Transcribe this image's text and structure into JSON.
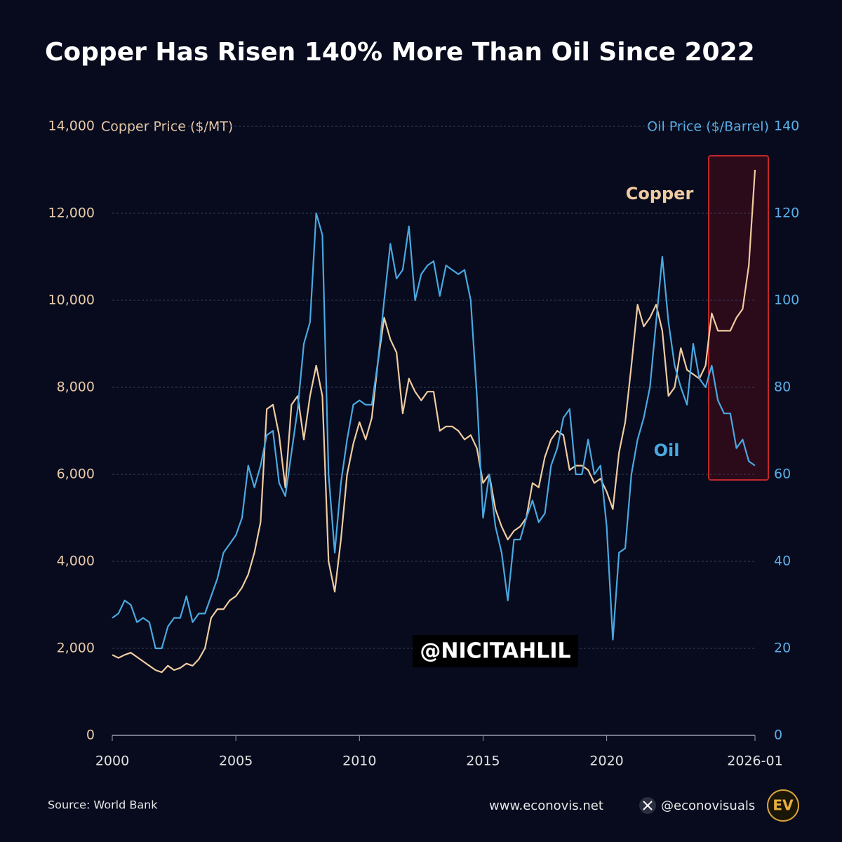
{
  "chart_data": {
    "type": "line",
    "title": "Copper Has Risen 140% More Than Oil Since 2022",
    "y_label": "Copper Price ($/MT)",
    "y2_label": "Oil Price ($/Barrel)",
    "source": "Source: World Bank",
    "website": "www.econovis.net",
    "handle": "@econovisuals",
    "logo": "EV",
    "watermark": "@NICITAHLIL",
    "x": [
      2000,
      2000.25,
      2000.5,
      2000.75,
      2001,
      2001.25,
      2001.5,
      2001.75,
      2002,
      2002.25,
      2002.5,
      2002.75,
      2003,
      2003.25,
      2003.5,
      2003.75,
      2004,
      2004.25,
      2004.5,
      2004.75,
      2005,
      2005.25,
      2005.5,
      2005.75,
      2006,
      2006.25,
      2006.5,
      2006.75,
      2007,
      2007.25,
      2007.5,
      2007.75,
      2008,
      2008.25,
      2008.5,
      2008.75,
      2009,
      2009.25,
      2009.5,
      2009.75,
      2010,
      2010.25,
      2010.5,
      2010.75,
      2011,
      2011.25,
      2011.5,
      2011.75,
      2012,
      2012.25,
      2012.5,
      2012.75,
      2013,
      2013.25,
      2013.5,
      2013.75,
      2014,
      2014.25,
      2014.5,
      2014.75,
      2015,
      2015.25,
      2015.5,
      2015.75,
      2016,
      2016.25,
      2016.5,
      2016.75,
      2017,
      2017.25,
      2017.5,
      2017.75,
      2018,
      2018.25,
      2018.5,
      2018.75,
      2019,
      2019.25,
      2019.5,
      2019.75,
      2020,
      2020.25,
      2020.5,
      2020.75,
      2021,
      2021.25,
      2021.5,
      2021.75,
      2022,
      2022.25,
      2022.5,
      2022.75,
      2023,
      2023.25,
      2023.5,
      2023.75,
      2024,
      2024.25,
      2024.5,
      2024.75,
      2025,
      2025.25,
      2025.5,
      2025.75,
      2026
    ],
    "series": [
      {
        "name": "Copper",
        "color": "#f0cba0",
        "axis": "y",
        "values": [
          1850,
          1780,
          1850,
          1900,
          1800,
          1700,
          1600,
          1500,
          1450,
          1600,
          1500,
          1550,
          1650,
          1600,
          1750,
          2000,
          2700,
          2900,
          2900,
          3100,
          3200,
          3400,
          3700,
          4200,
          4900,
          7500,
          7600,
          6900,
          5700,
          7600,
          7800,
          6800,
          7800,
          8500,
          7800,
          4000,
          3300,
          4500,
          6000,
          6700,
          7200,
          6800,
          7300,
          8600,
          9600,
          9100,
          8800,
          7400,
          8200,
          7900,
          7700,
          7900,
          7900,
          7000,
          7100,
          7100,
          7000,
          6800,
          6900,
          6600,
          5800,
          6000,
          5200,
          4800,
          4500,
          4700,
          4800,
          5000,
          5800,
          5700,
          6400,
          6800,
          7000,
          6900,
          6100,
          6200,
          6200,
          6100,
          5800,
          5900,
          5600,
          5200,
          6500,
          7200,
          8500,
          9900,
          9400,
          9600,
          9900,
          9300,
          7800,
          8000,
          8900,
          8400,
          8300,
          8200,
          8500,
          9700,
          9300,
          9300,
          9300,
          9600,
          9800,
          10800,
          13000
        ]
      },
      {
        "name": "Oil",
        "color": "#4aa8e0",
        "axis": "y2",
        "values": [
          27,
          28,
          31,
          30,
          26,
          27,
          26,
          20,
          20,
          25,
          27,
          27,
          32,
          26,
          28,
          28,
          32,
          36,
          42,
          44,
          46,
          50,
          62,
          57,
          62,
          69,
          70,
          58,
          55,
          65,
          75,
          90,
          95,
          120,
          115,
          60,
          42,
          58,
          68,
          76,
          77,
          76,
          76,
          86,
          100,
          113,
          105,
          107,
          117,
          100,
          106,
          108,
          109,
          101,
          108,
          107,
          106,
          107,
          100,
          78,
          50,
          60,
          48,
          42,
          31,
          45,
          45,
          50,
          54,
          49,
          51,
          62,
          66,
          73,
          75,
          60,
          60,
          68,
          60,
          62,
          48,
          22,
          42,
          43,
          60,
          68,
          73,
          80,
          95,
          110,
          95,
          85,
          80,
          76,
          90,
          82,
          80,
          85,
          77,
          74,
          74,
          66,
          68,
          63,
          62
        ]
      }
    ],
    "xlim": [
      2000,
      2026
    ],
    "xticks": [
      2000,
      2005,
      2010,
      2015,
      2020,
      {
        "value": 2026,
        "label": "2026-01"
      }
    ],
    "ylim": [
      0,
      14000
    ],
    "yticks": [
      0,
      {
        "value": 2000,
        "label": "2,000"
      },
      {
        "value": 4000,
        "label": "4,000"
      },
      {
        "value": 6000,
        "label": "6,000"
      },
      {
        "value": 8000,
        "label": "8,000"
      },
      {
        "value": 10000,
        "label": "10,000"
      },
      {
        "value": 12000,
        "label": "12,000"
      },
      {
        "value": 14000,
        "label": "14,000"
      }
    ],
    "y2lim": [
      0,
      140
    ],
    "y2ticks": [
      0,
      20,
      40,
      60,
      80,
      100,
      120,
      140
    ],
    "grid": true
  }
}
